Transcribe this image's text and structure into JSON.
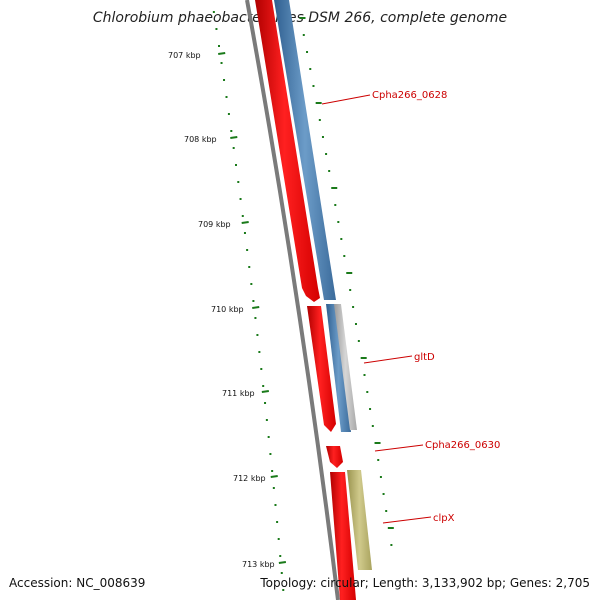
{
  "title": "Chlorobium phaeobacteroides DSM 266, complete genome",
  "footer": {
    "accession": "Accession: NC_008639",
    "topology": "Topology: circular; Length: 3,133,902 bp; Genes: 2,705"
  },
  "colors": {
    "backbone": "#7a7a7a",
    "cds": "#ff0000",
    "gene_blue": "#4a7eb0",
    "gene_grey": "#b4b4b4",
    "gene_olive": "#b4ae6c",
    "tick": "#1a7a1a",
    "label": "#cc0000"
  },
  "scale": {
    "tick_labels": [
      "707 kbp",
      "708 kbp",
      "709 kbp",
      "710 kbp",
      "711 kbp",
      "712 kbp",
      "713 kbp"
    ]
  },
  "genes": [
    {
      "name": "Cpha266_0628"
    },
    {
      "name": "gltD"
    },
    {
      "name": "Cpha266_0630"
    },
    {
      "name": "clpX"
    }
  ]
}
